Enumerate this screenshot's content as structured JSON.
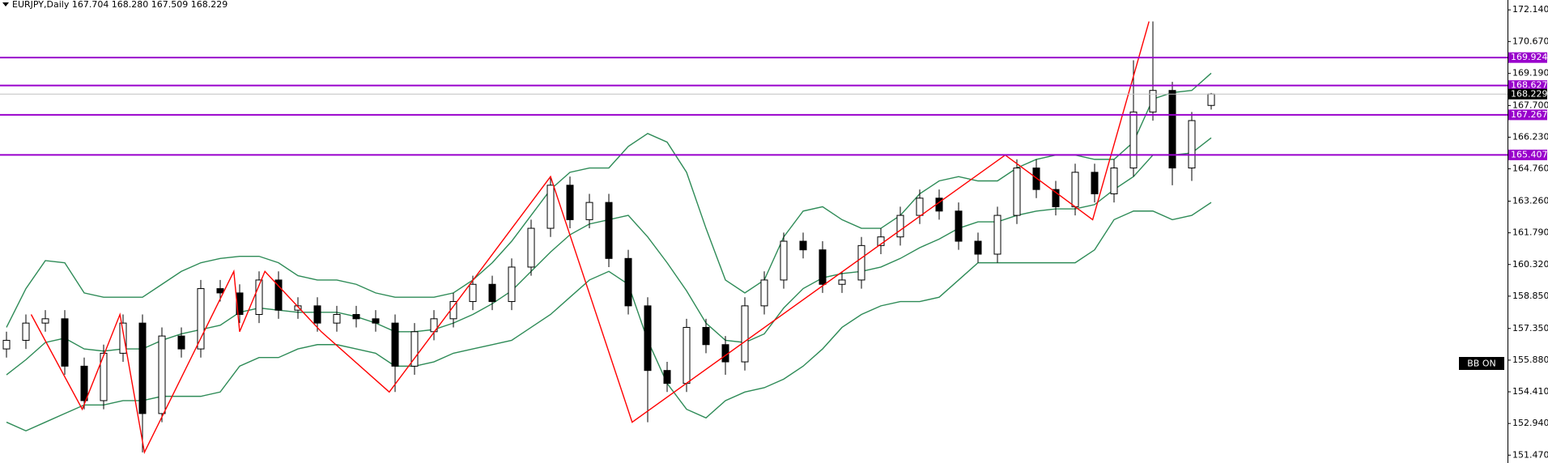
{
  "chart_data": {
    "type": "candlestick",
    "title": "EURJPY,Daily  167.704 168.280 167.509 168.229",
    "indicator_label": "BB ON",
    "ylim": [
      151.105,
      172.598
    ],
    "yticks": [
      {
        "value": 172.14,
        "label": "172.140"
      },
      {
        "value": 170.67,
        "label": "170.670"
      },
      {
        "value": 169.19,
        "label": "169.190"
      },
      {
        "value": 167.7,
        "label": "167.700"
      },
      {
        "value": 166.23,
        "label": "166.230"
      },
      {
        "value": 164.76,
        "label": "164.760"
      },
      {
        "value": 163.26,
        "label": "163.260"
      },
      {
        "value": 161.79,
        "label": "161.790"
      },
      {
        "value": 160.32,
        "label": "160.320"
      },
      {
        "value": 158.85,
        "label": "158.850"
      },
      {
        "value": 157.35,
        "label": "157.350"
      },
      {
        "value": 155.88,
        "label": "155.880"
      },
      {
        "value": 154.41,
        "label": "154.410"
      },
      {
        "value": 152.94,
        "label": "152.940"
      },
      {
        "value": 151.47,
        "label": "151.470"
      }
    ],
    "open": [
      156.4,
      156.8,
      157.6,
      157.8,
      155.6,
      154.0,
      156.2,
      157.6,
      153.4,
      157.0,
      156.4,
      159.2,
      159.0,
      158.0,
      159.6,
      158.2,
      158.4,
      157.6,
      158.0,
      157.8,
      157.6,
      155.6,
      157.2,
      157.8,
      158.6,
      159.4,
      158.6,
      160.2,
      162.0,
      164.0,
      162.4,
      163.2,
      160.6,
      158.4,
      155.4,
      154.8,
      157.4,
      156.6,
      155.8,
      158.4,
      159.6,
      161.4,
      161.0,
      159.4,
      159.6,
      161.2,
      161.6,
      162.6,
      163.4,
      162.8,
      161.4,
      160.8,
      162.6,
      164.8,
      163.8,
      163.0,
      164.6,
      163.6,
      164.8,
      167.4,
      168.4,
      164.8,
      167.704
    ],
    "high": [
      157.2,
      158.0,
      158.2,
      158.2,
      156.0,
      156.6,
      158.0,
      158.0,
      157.4,
      157.4,
      159.6,
      159.6,
      159.4,
      160.0,
      160.0,
      158.8,
      158.8,
      158.4,
      158.4,
      158.2,
      158.0,
      157.6,
      158.2,
      159.0,
      159.8,
      159.8,
      160.6,
      162.4,
      164.4,
      164.4,
      163.6,
      163.6,
      161.0,
      158.8,
      155.8,
      157.8,
      157.8,
      157.0,
      158.8,
      160.0,
      161.8,
      161.8,
      161.4,
      160.0,
      161.6,
      162.0,
      163.0,
      163.8,
      163.8,
      163.2,
      161.8,
      163.0,
      165.2,
      165.2,
      164.2,
      165.0,
      165.0,
      165.2,
      169.8,
      171.6,
      168.8,
      167.4,
      168.28
    ],
    "low": [
      156.0,
      156.4,
      157.2,
      155.2,
      153.6,
      153.6,
      155.8,
      151.6,
      153.0,
      156.0,
      156.0,
      158.6,
      157.6,
      157.6,
      157.8,
      157.8,
      157.2,
      157.2,
      157.4,
      157.2,
      154.4,
      155.2,
      156.8,
      157.4,
      158.2,
      158.2,
      158.2,
      159.8,
      161.6,
      162.0,
      162.0,
      160.2,
      158.0,
      153.0,
      154.4,
      154.4,
      156.2,
      155.2,
      155.4,
      158.0,
      159.2,
      160.6,
      159.0,
      159.0,
      159.2,
      160.8,
      161.2,
      162.2,
      162.4,
      161.0,
      160.4,
      160.4,
      162.2,
      163.4,
      162.6,
      162.6,
      163.2,
      163.2,
      164.4,
      167.0,
      164.0,
      164.2,
      167.509
    ],
    "close": [
      156.8,
      157.6,
      157.8,
      155.6,
      154.0,
      156.2,
      157.6,
      153.4,
      157.0,
      156.4,
      159.2,
      159.0,
      158.0,
      159.6,
      158.2,
      158.4,
      157.6,
      158.0,
      157.8,
      157.6,
      155.6,
      157.2,
      157.8,
      158.6,
      159.4,
      158.6,
      160.2,
      162.0,
      164.0,
      162.4,
      163.2,
      160.6,
      158.4,
      155.4,
      154.8,
      157.4,
      156.6,
      155.8,
      158.4,
      159.6,
      161.4,
      161.0,
      159.4,
      159.6,
      161.2,
      161.6,
      162.6,
      163.4,
      162.8,
      161.4,
      160.8,
      162.6,
      164.8,
      163.8,
      163.0,
      164.6,
      163.6,
      164.8,
      167.4,
      168.4,
      164.8,
      167.0,
      168.229
    ],
    "bands": [
      {
        "color": "#2e8b57",
        "values": [
          157.4,
          159.2,
          160.5,
          160.4,
          159.0,
          158.8,
          158.8,
          158.8,
          159.4,
          160.0,
          160.4,
          160.6,
          160.7,
          160.7,
          160.4,
          159.8,
          159.6,
          159.6,
          159.4,
          159.0,
          158.8,
          158.8,
          158.8,
          159.0,
          159.6,
          160.4,
          161.4,
          162.6,
          163.8,
          164.6,
          164.8,
          164.8,
          165.8,
          166.4,
          166.0,
          164.6,
          162.0,
          159.6,
          159.0,
          159.6,
          161.6,
          162.8,
          163.0,
          162.4,
          162.0,
          162.0,
          162.6,
          163.6,
          164.2,
          164.4,
          164.2,
          164.2,
          164.8,
          165.2,
          165.4,
          165.4,
          165.2,
          165.2,
          166.0,
          168.0,
          168.3,
          168.4,
          169.2
        ]
      },
      {
        "color": "#2e8b57",
        "values": [
          155.2,
          155.9,
          156.7,
          156.9,
          156.4,
          156.3,
          156.4,
          156.4,
          156.8,
          157.1,
          157.3,
          157.5,
          158.1,
          158.3,
          158.2,
          158.1,
          158.1,
          158.1,
          157.9,
          157.6,
          157.2,
          157.2,
          157.3,
          157.6,
          158.0,
          158.5,
          159.1,
          160.0,
          160.9,
          161.7,
          162.2,
          162.4,
          162.6,
          161.6,
          160.4,
          159.1,
          157.6,
          156.8,
          156.7,
          157.1,
          158.3,
          159.2,
          159.7,
          159.9,
          160.0,
          160.2,
          160.6,
          161.1,
          161.5,
          162.0,
          162.3,
          162.3,
          162.6,
          162.8,
          162.9,
          162.9,
          163.1,
          163.8,
          164.4,
          165.4,
          165.4,
          165.5,
          166.2
        ]
      },
      {
        "color": "#2e8b57",
        "values": [
          153.0,
          152.6,
          153.0,
          153.4,
          153.8,
          153.8,
          154.0,
          154.0,
          154.2,
          154.2,
          154.2,
          154.4,
          155.6,
          156.0,
          156.0,
          156.4,
          156.6,
          156.6,
          156.4,
          156.2,
          155.6,
          155.6,
          155.8,
          156.2,
          156.4,
          156.6,
          156.8,
          157.4,
          158.0,
          158.8,
          159.6,
          160.0,
          159.4,
          156.8,
          154.8,
          153.6,
          153.2,
          154.0,
          154.4,
          154.6,
          155.0,
          155.6,
          156.4,
          157.4,
          158.0,
          158.4,
          158.6,
          158.6,
          158.8,
          159.6,
          160.4,
          160.4,
          160.4,
          160.4,
          160.4,
          160.4,
          161.0,
          162.4,
          162.8,
          162.8,
          162.4,
          162.6,
          163.2
        ]
      }
    ],
    "zigzag": {
      "color": "#ff0000",
      "x": [
        1.27,
        3.9,
        5.84,
        7.1,
        11.7,
        12.0,
        13.3,
        16.2,
        19.7,
        28.0,
        32.2,
        51.4,
        55.9,
        58.8
      ],
      "values": [
        158.0,
        153.6,
        158.0,
        151.6,
        160.0,
        157.2,
        160.0,
        157.2,
        154.4,
        164.4,
        153.0,
        165.4,
        162.4,
        171.6
      ]
    },
    "levels": {
      "color": "#9900cc",
      "values": [
        169.924,
        168.627,
        167.267,
        165.407
      ],
      "value_labels": [
        "169.924",
        "168.627",
        "167.267",
        "165.407"
      ]
    },
    "last_price": {
      "value": 168.229,
      "label": "168.229"
    }
  }
}
